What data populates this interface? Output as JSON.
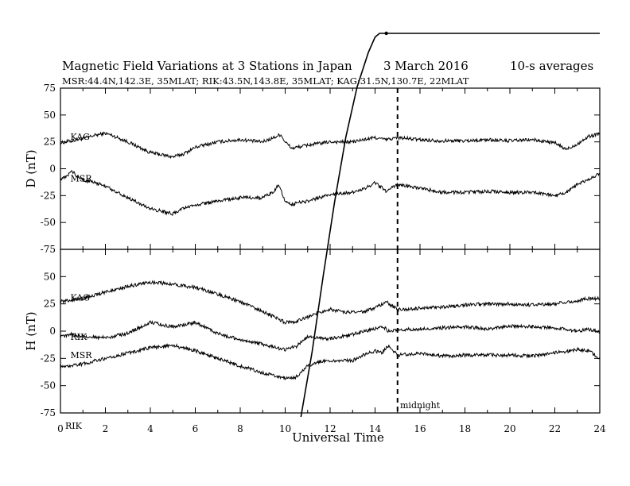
{
  "title_left": "Magnetic Field Variations at 3 Stations in Japan",
  "title_date": "3   March   2016",
  "title_avg": "10-s averages",
  "subtitle": "MSR:44.4N,142.3E, 35MLAT;  RIK:43.5N,143.8E, 35MLAT;  KAG:31.5N,130.7E, 22MLAT",
  "xlabel": "Universal Time",
  "midnight_label": "midnight",
  "corner_label": "RIK",
  "chart_data": [
    {
      "type": "line",
      "panel": "D",
      "ylabel": "D (nT)",
      "ylim": [
        -75,
        75
      ],
      "yticks": [
        75,
        50,
        25,
        0,
        -25,
        -50,
        -75
      ],
      "xlim": [
        0,
        24
      ],
      "xticks": [
        0,
        2,
        4,
        6,
        8,
        10,
        12,
        14,
        16,
        18,
        20,
        22,
        24
      ],
      "vline_x": 15,
      "series": [
        {
          "name": "KAG",
          "label_at": [
            0.3,
            30
          ],
          "x": [
            0,
            1,
            1.5,
            2,
            2.3,
            3,
            4,
            5,
            5.5,
            6,
            7,
            8,
            9,
            9.5,
            9.8,
            10,
            10.3,
            11,
            12,
            13,
            13.5,
            14,
            14.5,
            15,
            16,
            17,
            18,
            19,
            20,
            21,
            22,
            22.5,
            23,
            23.5,
            24
          ],
          "y": [
            24,
            28,
            31,
            33,
            31,
            25,
            15,
            11,
            14,
            20,
            25,
            27,
            25,
            29,
            32,
            25,
            19,
            22,
            25,
            25,
            27,
            29,
            27,
            29,
            27,
            26,
            26,
            27,
            26,
            27,
            24,
            18,
            23,
            30,
            33
          ]
        },
        {
          "name": "MSR",
          "label_at": [
            0.3,
            -9
          ],
          "x": [
            0,
            0.3,
            0.5,
            0.8,
            1,
            2,
            3,
            4,
            5,
            5.5,
            6,
            7,
            8,
            9,
            9.5,
            9.7,
            10,
            10.3,
            11,
            12,
            13,
            13.5,
            14,
            14.5,
            15,
            16,
            17,
            18,
            19,
            20,
            21,
            22,
            22.5,
            23,
            23.5,
            24
          ],
          "y": [
            -10,
            -7,
            -2,
            -8,
            -10,
            -16,
            -27,
            -37,
            -42,
            -37,
            -34,
            -30,
            -27,
            -27,
            -21,
            -14,
            -30,
            -33,
            -30,
            -24,
            -22,
            -19,
            -13,
            -21,
            -15,
            -18,
            -22,
            -22,
            -21,
            -22,
            -22,
            -25,
            -22,
            -15,
            -10,
            -4
          ]
        }
      ]
    },
    {
      "type": "line",
      "panel": "H",
      "ylabel": "H (nT)",
      "ylim": [
        -75,
        75
      ],
      "yticks": [
        50,
        25,
        0,
        -25,
        -50,
        -75
      ],
      "xlim": [
        0,
        24
      ],
      "xticks": [
        0,
        2,
        4,
        6,
        8,
        10,
        12,
        14,
        16,
        18,
        20,
        22,
        24
      ],
      "vline_x": 15,
      "series": [
        {
          "name": "KAG",
          "label_at": [
            0.3,
            31
          ],
          "x": [
            0,
            1,
            2,
            3,
            4,
            5,
            6,
            7,
            8,
            9,
            10,
            10.5,
            11,
            11.5,
            12,
            12.5,
            13,
            13.5,
            14,
            14.5,
            15,
            16,
            17,
            18,
            19,
            20,
            21,
            22,
            23,
            23.5,
            24
          ],
          "y": [
            27,
            30,
            36,
            41,
            45,
            43,
            40,
            34,
            27,
            18,
            8,
            9,
            13,
            17,
            20,
            18,
            17,
            18,
            21,
            27,
            20,
            21,
            22,
            24,
            25,
            25,
            24,
            25,
            28,
            30,
            30
          ]
        },
        {
          "name": "RIK",
          "label_at": [
            0.3,
            -5
          ],
          "x": [
            0,
            0.5,
            1,
            2,
            3,
            4,
            5,
            6,
            7,
            8,
            9,
            10,
            10.5,
            11,
            12,
            13,
            13.5,
            14,
            14.3,
            14.6,
            15,
            16,
            17,
            18,
            19,
            20,
            21,
            22,
            23,
            23.5,
            24
          ],
          "y": [
            -5,
            -3,
            -5,
            -6,
            -2,
            8,
            4,
            8,
            -2,
            -8,
            -12,
            -17,
            -14,
            -5,
            -7,
            -3,
            0,
            2,
            5,
            0,
            1,
            2,
            3,
            4,
            2,
            5,
            4,
            3,
            0,
            2,
            -1
          ]
        },
        {
          "name": "MSR",
          "label_at": [
            0.3,
            -22
          ],
          "x": [
            0,
            1,
            2,
            3,
            4,
            5,
            6,
            7,
            8,
            9,
            10,
            10.5,
            11,
            11.5,
            12,
            13,
            13.5,
            14,
            14.3,
            14.6,
            15,
            16,
            17,
            18,
            19,
            20,
            21,
            22,
            23,
            23.5,
            24
          ],
          "y": [
            -33,
            -30,
            -25,
            -20,
            -15,
            -13,
            -18,
            -25,
            -32,
            -38,
            -43,
            -42,
            -32,
            -28,
            -27,
            -27,
            -22,
            -18,
            -20,
            -13,
            -22,
            -20,
            -23,
            -22,
            -22,
            -22,
            -23,
            -20,
            -17,
            -18,
            -25
          ]
        }
      ]
    },
    {
      "type": "line",
      "name": "",
      "note": "steep diagonal trace overlaid on both panels",
      "x": [
        10.7,
        11.2,
        11.7,
        12.2,
        12.7,
        13.2,
        13.7,
        14.0,
        14.2,
        14.5,
        24
      ],
      "y_frac_from_bottom": [
        0,
        0.17,
        0.37,
        0.56,
        0.73,
        0.86,
        0.95,
        0.99,
        1.0,
        1.0,
        1.0
      ]
    }
  ]
}
